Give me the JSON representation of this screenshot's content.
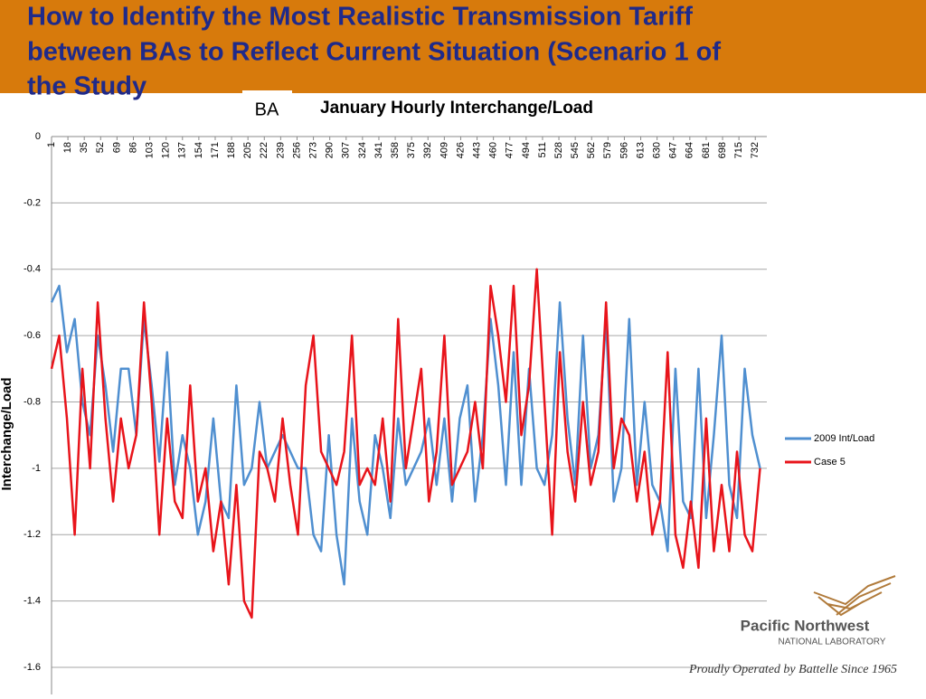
{
  "slide_title": [
    "How to Identify the Most Realistic Transmission Tariff",
    "between BAs to Reflect Current Situation (Scenario 1 of",
    "the Study"
  ],
  "overlay_label": "BA",
  "logo": {
    "name": "Pacific Northwest",
    "sub": "NATIONAL LABORATORY",
    "tagline": "Proudly Operated by Battelle Since 1965"
  },
  "chart_data": {
    "type": "line",
    "title": "January Hourly Interchange/Load",
    "y_label": "Interchange/Load",
    "x": [
      1,
      9,
      17,
      25,
      33,
      41,
      49,
      57,
      65,
      73,
      81,
      89,
      97,
      105,
      113,
      121,
      129,
      137,
      145,
      153,
      161,
      169,
      177,
      185,
      193,
      201,
      209,
      217,
      225,
      233,
      241,
      249,
      257,
      265,
      273,
      281,
      289,
      297,
      305,
      313,
      321,
      329,
      337,
      345,
      353,
      361,
      369,
      377,
      385,
      393,
      401,
      409,
      417,
      425,
      433,
      441,
      449,
      457,
      465,
      473,
      481,
      489,
      497,
      505,
      513,
      521,
      529,
      537,
      545,
      553,
      561,
      569,
      577,
      585,
      593,
      601,
      609,
      617,
      625,
      633,
      641,
      649,
      657,
      665,
      673,
      681,
      689,
      697,
      705,
      713,
      721,
      729,
      737
    ],
    "xlim": [
      1,
      744
    ],
    "xticks": [
      1,
      18,
      35,
      52,
      69,
      86,
      103,
      120,
      137,
      154,
      171,
      188,
      205,
      222,
      239,
      256,
      273,
      290,
      307,
      324,
      341,
      358,
      375,
      392,
      409,
      426,
      443,
      460,
      477,
      494,
      511,
      528,
      545,
      562,
      579,
      596,
      613,
      630,
      647,
      664,
      681,
      698,
      715,
      732
    ],
    "ylim": [
      -1.6,
      0
    ],
    "yticks": [
      0,
      -0.2,
      -0.4,
      -0.6,
      -0.8,
      -1,
      -1.2,
      -1.4,
      -1.6
    ],
    "grid": true,
    "legend": "right",
    "series": [
      {
        "name": "2009 Int/Load",
        "color": "#4f8fd0",
        "values": [
          -0.5,
          -0.45,
          -0.65,
          -0.55,
          -0.8,
          -0.9,
          -0.6,
          -0.75,
          -0.95,
          -0.7,
          -0.7,
          -0.9,
          -0.55,
          -0.75,
          -0.98,
          -0.65,
          -1.05,
          -0.9,
          -1.0,
          -1.2,
          -1.1,
          -0.85,
          -1.1,
          -1.15,
          -0.75,
          -1.05,
          -1.0,
          -0.8,
          -1.0,
          -0.95,
          -0.9,
          -0.95,
          -1.0,
          -1.0,
          -1.2,
          -1.25,
          -0.9,
          -1.2,
          -1.35,
          -0.85,
          -1.1,
          -1.2,
          -0.9,
          -1.0,
          -1.15,
          -0.85,
          -1.05,
          -1.0,
          -0.95,
          -0.85,
          -1.05,
          -0.85,
          -1.1,
          -0.85,
          -0.75,
          -1.1,
          -0.9,
          -0.55,
          -0.75,
          -1.05,
          -0.65,
          -1.05,
          -0.7,
          -1.0,
          -1.05,
          -0.9,
          -0.5,
          -0.85,
          -1.05,
          -0.6,
          -1.0,
          -0.9,
          -0.55,
          -1.1,
          -1.0,
          -0.55,
          -1.05,
          -0.8,
          -1.05,
          -1.1,
          -1.25,
          -0.7,
          -1.1,
          -1.15,
          -0.7,
          -1.15,
          -0.9,
          -0.6,
          -1.05,
          -1.15,
          -0.7,
          -0.9,
          -1.0
        ]
      },
      {
        "name": "Case 5",
        "color": "#e8141b",
        "values": [
          -0.7,
          -0.6,
          -0.85,
          -1.2,
          -0.7,
          -1.0,
          -0.5,
          -0.85,
          -1.1,
          -0.85,
          -1.0,
          -0.9,
          -0.5,
          -0.8,
          -1.2,
          -0.85,
          -1.1,
          -1.15,
          -0.75,
          -1.1,
          -1.0,
          -1.25,
          -1.1,
          -1.35,
          -1.05,
          -1.4,
          -1.45,
          -0.95,
          -1.0,
          -1.1,
          -0.85,
          -1.05,
          -1.2,
          -0.75,
          -0.6,
          -0.95,
          -1.0,
          -1.05,
          -0.95,
          -0.6,
          -1.05,
          -1.0,
          -1.05,
          -0.85,
          -1.1,
          -0.55,
          -1.0,
          -0.85,
          -0.7,
          -1.1,
          -0.95,
          -0.6,
          -1.05,
          -1.0,
          -0.95,
          -0.8,
          -1.0,
          -0.45,
          -0.6,
          -0.8,
          -0.45,
          -0.9,
          -0.75,
          -0.4,
          -0.8,
          -1.2,
          -0.65,
          -0.95,
          -1.1,
          -0.8,
          -1.05,
          -0.95,
          -0.5,
          -1.0,
          -0.85,
          -0.9,
          -1.1,
          -0.95,
          -1.2,
          -1.1,
          -0.65,
          -1.2,
          -1.3,
          -1.1,
          -1.3,
          -0.85,
          -1.25,
          -1.05,
          -1.25,
          -0.95,
          -1.2,
          -1.25,
          -1.0
        ]
      }
    ]
  }
}
